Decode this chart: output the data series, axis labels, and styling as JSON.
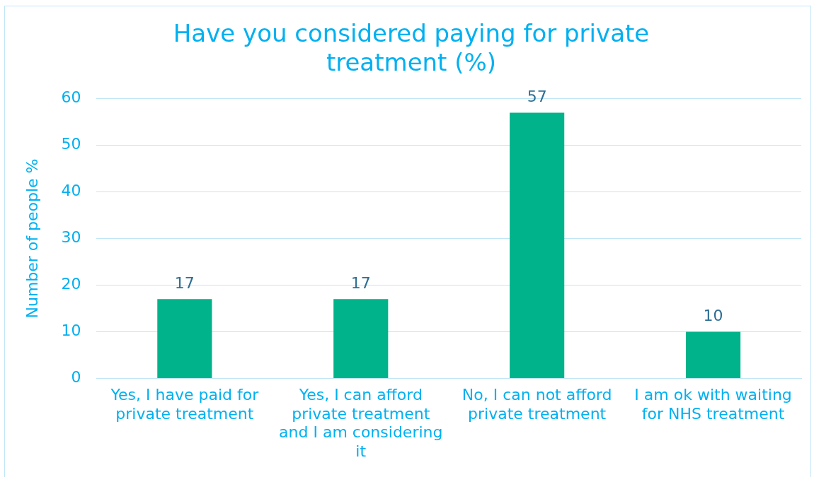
{
  "chart_data": {
    "type": "bar",
    "title": "Have you considered paying for private treatment (%)",
    "ylabel": "Number of people %",
    "categories": [
      "Yes, I have paid for private treatment",
      "Yes, I can afford private treatment and I am considering it",
      "No, I can not afford private treatment",
      "I am ok with waiting for NHS treatment"
    ],
    "values": [
      17,
      17,
      57,
      10
    ],
    "color": "#00b38a",
    "ylim": [
      0,
      60
    ],
    "yticks": [
      0,
      10,
      20,
      30,
      40,
      50,
      60
    ],
    "grid": "y",
    "data_labels": true,
    "legend": false
  }
}
